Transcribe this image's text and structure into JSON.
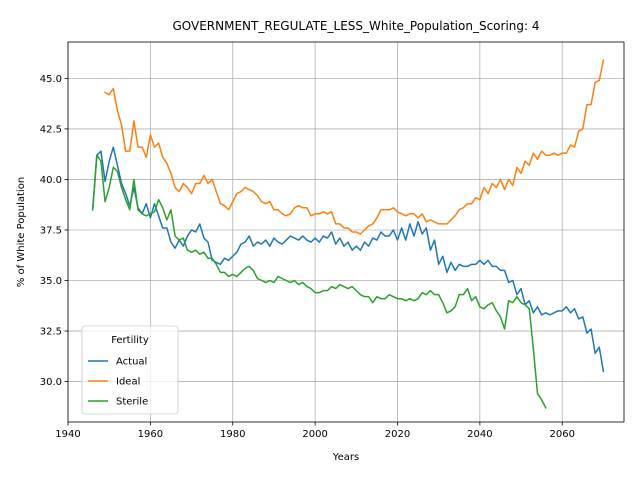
{
  "chart_data": {
    "type": "line",
    "title": "GOVERNMENT_REGULATE_LESS_White_Population_Scoring: 4",
    "xlabel": "Years",
    "ylabel": "% of White Population",
    "xlim": [
      1940,
      2075
    ],
    "ylim": [
      28.0,
      46.8
    ],
    "xticks": [
      1940,
      1960,
      1980,
      2000,
      2020,
      2040,
      2060
    ],
    "yticks": [
      30.0,
      32.5,
      35.0,
      37.5,
      40.0,
      42.5,
      45.0
    ],
    "grid": true,
    "legend": {
      "title": "Fertility",
      "placement": "lower-left"
    },
    "series": [
      {
        "name": "Actual",
        "color": "#1f77b4",
        "x": [
          1946,
          1947,
          1948,
          1949,
          1950,
          1951,
          1952,
          1953,
          1954,
          1955,
          1956,
          1957,
          1958,
          1959,
          1960,
          1961,
          1962,
          1963,
          1964,
          1965,
          1966,
          1967,
          1968,
          1969,
          1970,
          1971,
          1972,
          1973,
          1974,
          1975,
          1976,
          1977,
          1978,
          1979,
          1980,
          1981,
          1982,
          1983,
          1984,
          1985,
          1986,
          1987,
          1988,
          1989,
          1990,
          1991,
          1992,
          1993,
          1994,
          1995,
          1996,
          1997,
          1998,
          1999,
          2000,
          2001,
          2002,
          2003,
          2004,
          2005,
          2006,
          2007,
          2008,
          2009,
          2010,
          2011,
          2012,
          2013,
          2014,
          2015,
          2016,
          2017,
          2018,
          2019,
          2020,
          2021,
          2022,
          2023,
          2024,
          2025,
          2026,
          2027,
          2028,
          2029,
          2030,
          2031,
          2032,
          2033,
          2034,
          2035,
          2036,
          2037,
          2038,
          2039,
          2040,
          2041,
          2042,
          2043,
          2044,
          2045,
          2046,
          2047,
          2048,
          2049,
          2050,
          2051,
          2052,
          2053,
          2054,
          2055,
          2056,
          2057,
          2058,
          2059,
          2060,
          2061,
          2062,
          2063,
          2064,
          2065,
          2066,
          2067,
          2068,
          2069,
          2070
        ],
        "values": [
          38.5,
          41.2,
          41.4,
          39.9,
          40.9,
          41.6,
          40.7,
          39.8,
          39.3,
          38.7,
          39.6,
          38.6,
          38.3,
          38.8,
          38.1,
          38.8,
          38.2,
          37.6,
          37.6,
          36.9,
          36.6,
          37.0,
          36.7,
          37.2,
          37.5,
          37.4,
          37.8,
          37.1,
          36.9,
          36.0,
          35.9,
          35.8,
          36.1,
          36.0,
          36.2,
          36.4,
          36.8,
          36.9,
          37.2,
          36.7,
          36.9,
          36.8,
          37.0,
          36.7,
          37.1,
          36.9,
          36.8,
          37.0,
          37.2,
          37.1,
          37.0,
          37.2,
          37.0,
          36.9,
          37.1,
          36.9,
          37.2,
          37.1,
          37.4,
          36.8,
          37.1,
          36.7,
          36.9,
          36.5,
          36.7,
          36.5,
          36.9,
          36.7,
          37.1,
          37.0,
          37.4,
          37.2,
          37.2,
          37.5,
          37.0,
          37.6,
          37.0,
          37.8,
          37.2,
          37.9,
          37.3,
          37.6,
          36.5,
          37.0,
          35.8,
          36.2,
          35.4,
          35.9,
          35.5,
          35.8,
          35.7,
          35.7,
          35.8,
          35.8,
          36.0,
          35.8,
          36.0,
          35.7,
          35.7,
          35.5,
          35.5,
          34.9,
          35.0,
          34.3,
          34.6,
          33.8,
          34.0,
          33.4,
          33.7,
          33.3,
          33.4,
          33.3,
          33.4,
          33.5,
          33.5,
          33.7,
          33.4,
          33.6,
          33.1,
          33.2,
          32.4,
          32.6,
          31.4,
          31.7,
          30.5
        ]
      },
      {
        "name": "Ideal",
        "color": "#ff7f0e",
        "x": [
          1949,
          1950,
          1951,
          1952,
          1953,
          1954,
          1955,
          1956,
          1957,
          1958,
          1959,
          1960,
          1961,
          1962,
          1963,
          1964,
          1965,
          1966,
          1967,
          1968,
          1969,
          1970,
          1971,
          1972,
          1973,
          1974,
          1975,
          1976,
          1977,
          1978,
          1979,
          1980,
          1981,
          1982,
          1983,
          1984,
          1985,
          1986,
          1987,
          1988,
          1989,
          1990,
          1991,
          1992,
          1993,
          1994,
          1995,
          1996,
          1997,
          1998,
          1999,
          2000,
          2001,
          2002,
          2003,
          2004,
          2005,
          2006,
          2007,
          2008,
          2009,
          2010,
          2011,
          2012,
          2013,
          2014,
          2015,
          2016,
          2017,
          2018,
          2019,
          2020,
          2021,
          2022,
          2023,
          2024,
          2025,
          2026,
          2027,
          2028,
          2029,
          2030,
          2031,
          2032,
          2033,
          2034,
          2035,
          2036,
          2037,
          2038,
          2039,
          2040,
          2041,
          2042,
          2043,
          2044,
          2045,
          2046,
          2047,
          2048,
          2049,
          2050,
          2051,
          2052,
          2053,
          2054,
          2055,
          2056,
          2057,
          2058,
          2059,
          2060,
          2061,
          2062,
          2063,
          2064,
          2065,
          2066,
          2067,
          2068,
          2069,
          2070
        ],
        "values": [
          44.3,
          44.2,
          44.5,
          43.4,
          42.7,
          41.4,
          41.4,
          42.9,
          41.6,
          41.6,
          41.1,
          42.2,
          41.6,
          41.8,
          41.1,
          40.8,
          40.3,
          39.6,
          39.4,
          39.8,
          39.6,
          39.3,
          39.8,
          39.8,
          40.2,
          39.8,
          40.0,
          39.4,
          38.8,
          38.7,
          38.5,
          38.9,
          39.3,
          39.4,
          39.6,
          39.5,
          39.4,
          39.2,
          38.9,
          38.8,
          38.9,
          38.5,
          38.5,
          38.3,
          38.2,
          38.3,
          38.6,
          38.7,
          38.6,
          38.6,
          38.2,
          38.3,
          38.3,
          38.4,
          38.3,
          38.4,
          37.8,
          37.8,
          37.6,
          37.6,
          37.4,
          37.4,
          37.3,
          37.5,
          37.7,
          37.8,
          38.1,
          38.5,
          38.5,
          38.5,
          38.6,
          38.4,
          38.3,
          38.2,
          38.3,
          38.3,
          38.1,
          38.3,
          37.9,
          38.0,
          37.9,
          37.8,
          37.8,
          37.8,
          38.0,
          38.2,
          38.5,
          38.6,
          38.8,
          38.8,
          39.1,
          39.0,
          39.6,
          39.3,
          39.8,
          39.6,
          40.0,
          39.5,
          40.0,
          39.7,
          40.6,
          40.3,
          40.9,
          40.7,
          41.3,
          41.0,
          41.4,
          41.2,
          41.2,
          41.3,
          41.2,
          41.3,
          41.3,
          41.7,
          41.6,
          42.4,
          42.5,
          43.7,
          43.7,
          44.8,
          44.9,
          45.9
        ]
      },
      {
        "name": "Sterile",
        "color": "#2ca02c",
        "x": [
          1946,
          1947,
          1948,
          1949,
          1950,
          1951,
          1952,
          1953,
          1954,
          1955,
          1956,
          1957,
          1958,
          1959,
          1960,
          1961,
          1962,
          1963,
          1964,
          1965,
          1966,
          1967,
          1968,
          1969,
          1970,
          1971,
          1972,
          1973,
          1974,
          1975,
          1976,
          1977,
          1978,
          1979,
          1980,
          1981,
          1982,
          1983,
          1984,
          1985,
          1986,
          1987,
          1988,
          1989,
          1990,
          1991,
          1992,
          1993,
          1994,
          1995,
          1996,
          1997,
          1998,
          1999,
          2000,
          2001,
          2002,
          2003,
          2004,
          2005,
          2006,
          2007,
          2008,
          2009,
          2010,
          2011,
          2012,
          2013,
          2014,
          2015,
          2016,
          2017,
          2018,
          2019,
          2020,
          2021,
          2022,
          2023,
          2024,
          2025,
          2026,
          2027,
          2028,
          2029,
          2030,
          2031,
          2032,
          2033,
          2034,
          2035,
          2036,
          2037,
          2038,
          2039,
          2040,
          2041,
          2042,
          2043,
          2044,
          2045,
          2046,
          2047,
          2048,
          2049,
          2050,
          2051,
          2052,
          2053,
          2054,
          2055,
          2056
        ],
        "values": [
          38.5,
          41.2,
          40.9,
          38.9,
          39.6,
          40.6,
          40.4,
          39.6,
          39.0,
          38.5,
          40.0,
          38.5,
          38.3,
          38.2,
          38.3,
          38.4,
          39.0,
          38.6,
          38.0,
          38.5,
          37.2,
          37.0,
          37.1,
          36.5,
          36.4,
          36.5,
          36.3,
          36.4,
          36.1,
          36.1,
          35.8,
          35.4,
          35.4,
          35.2,
          35.3,
          35.2,
          35.4,
          35.6,
          35.7,
          35.5,
          35.1,
          35.0,
          34.9,
          35.0,
          34.9,
          35.2,
          35.1,
          35.0,
          34.9,
          35.0,
          34.8,
          34.9,
          34.7,
          34.6,
          34.4,
          34.4,
          34.5,
          34.5,
          34.7,
          34.6,
          34.8,
          34.7,
          34.6,
          34.7,
          34.5,
          34.3,
          34.2,
          34.2,
          33.9,
          34.2,
          34.1,
          34.1,
          34.3,
          34.2,
          34.1,
          34.1,
          34.0,
          34.1,
          34.0,
          34.1,
          34.4,
          34.3,
          34.5,
          34.3,
          34.3,
          33.9,
          33.4,
          33.5,
          33.7,
          34.3,
          34.3,
          34.6,
          34.0,
          34.2,
          33.7,
          33.6,
          33.8,
          33.9,
          33.5,
          33.2,
          32.6,
          34.0,
          33.9,
          34.2,
          33.9,
          33.8,
          33.6,
          31.6,
          29.4,
          29.1,
          28.7
        ]
      }
    ]
  }
}
